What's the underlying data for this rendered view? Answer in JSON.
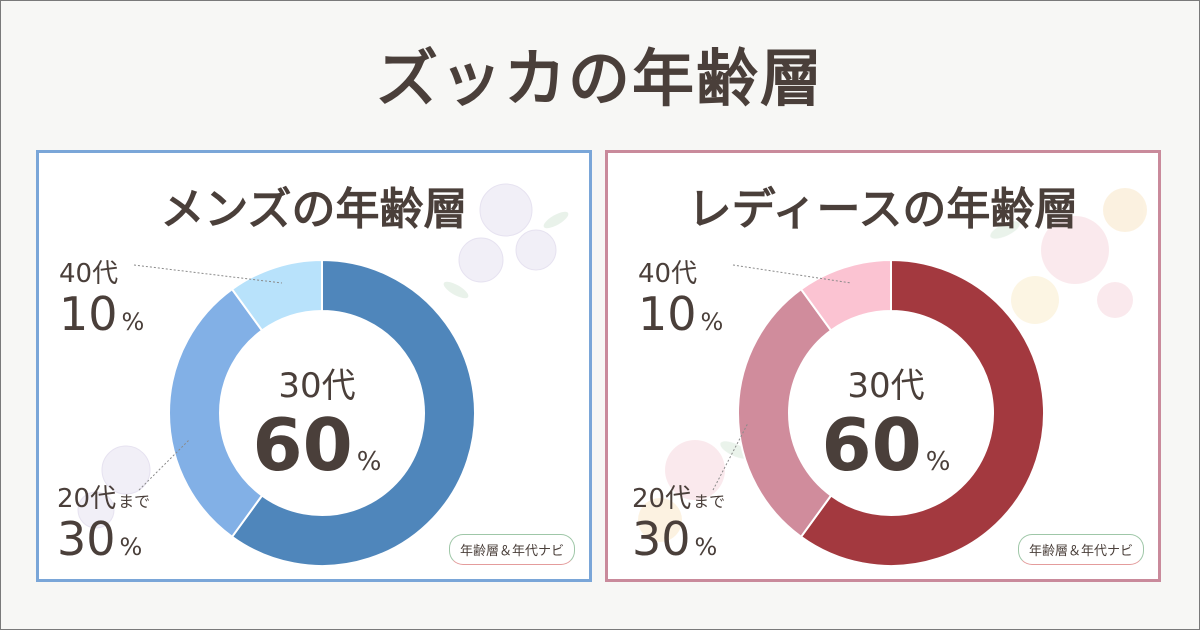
{
  "title": "ズッカの年齢層",
  "badge": "年齢層＆年代ナビ",
  "colors": {
    "mens_border": "#7aa6d8",
    "ladies_border": "#c98a9b"
  },
  "chart_data": [
    {
      "type": "pie",
      "title": "メンズの年齢層",
      "slices": [
        {
          "label": "30代",
          "value": 60,
          "color": "#4f86bb"
        },
        {
          "label": "20代まで",
          "value": 30,
          "color": "#82b0e6"
        },
        {
          "label": "40代",
          "value": 10,
          "color": "#b8e2fb"
        }
      ]
    },
    {
      "type": "pie",
      "title": "レディースの年齢層",
      "slices": [
        {
          "label": "30代",
          "value": 60,
          "color": "#a3393f"
        },
        {
          "label": "20代まで",
          "value": 30,
          "color": "#d08c9c"
        },
        {
          "label": "40代",
          "value": 10,
          "color": "#fbc3d2"
        }
      ]
    }
  ],
  "labels": {
    "age_30": "30代",
    "age_40": "40代",
    "age_20_prefix": "20代",
    "age_20_suffix": "まで",
    "pct_60": "60",
    "pct_30": "30",
    "pct_10": "10",
    "pct_unit": "%"
  }
}
